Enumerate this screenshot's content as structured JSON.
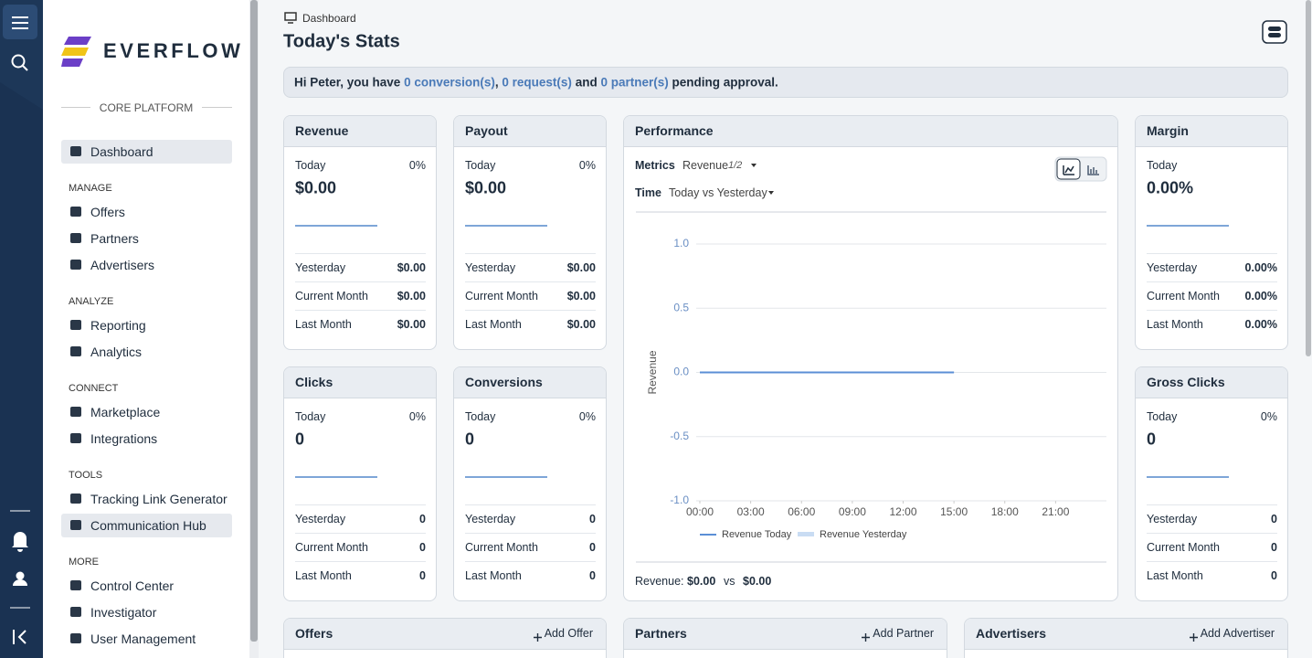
{
  "breadcrumb": "Dashboard",
  "title": "Today's Stats",
  "banner": {
    "greeting": "Hi Peter, you have",
    "conversions": "0 conversion(s)",
    "comma": ",",
    "requests": "0 request(s)",
    "and": "and",
    "partners": "0 partner(s)",
    "suffix": "pending approval."
  },
  "sidebar": {
    "brand": "EVERFLOW",
    "platform": "CORE PLATFORM",
    "top": [
      "Dashboard"
    ],
    "sections": [
      {
        "title": "MANAGE",
        "items": [
          "Offers",
          "Partners",
          "Advertisers"
        ]
      },
      {
        "title": "ANALYZE",
        "items": [
          "Reporting",
          "Analytics"
        ]
      },
      {
        "title": "CONNECT",
        "items": [
          "Marketplace",
          "Integrations"
        ]
      },
      {
        "title": "TOOLS",
        "items": [
          "Tracking Link Generator",
          "Communication Hub"
        ]
      },
      {
        "title": "MORE",
        "items": [
          "Control Center",
          "Investigator",
          "User Management"
        ]
      }
    ]
  },
  "stat_cards": [
    {
      "title": "Revenue",
      "today_label": "Today",
      "change": "0%",
      "today": "$0.00",
      "rows": [
        {
          "label": "Yesterday",
          "value": "$0.00"
        },
        {
          "label": "Current Month",
          "value": "$0.00"
        },
        {
          "label": "Last Month",
          "value": "$0.00"
        }
      ]
    },
    {
      "title": "Payout",
      "today_label": "Today",
      "change": "0%",
      "today": "$0.00",
      "rows": [
        {
          "label": "Yesterday",
          "value": "$0.00"
        },
        {
          "label": "Current Month",
          "value": "$0.00"
        },
        {
          "label": "Last Month",
          "value": "$0.00"
        }
      ]
    },
    {
      "title": "Margin",
      "today_label": "Today",
      "today": "0.00%",
      "rows": [
        {
          "label": "Yesterday",
          "value": "0.00%"
        },
        {
          "label": "Current Month",
          "value": "0.00%"
        },
        {
          "label": "Last Month",
          "value": "0.00%"
        }
      ]
    },
    {
      "title": "Clicks",
      "today_label": "Today",
      "change": "0%",
      "today": "0",
      "rows": [
        {
          "label": "Yesterday",
          "value": "0"
        },
        {
          "label": "Current Month",
          "value": "0"
        },
        {
          "label": "Last Month",
          "value": "0"
        }
      ]
    },
    {
      "title": "Conversions",
      "today_label": "Today",
      "change": "0%",
      "today": "0",
      "rows": [
        {
          "label": "Yesterday",
          "value": "0"
        },
        {
          "label": "Current Month",
          "value": "0"
        },
        {
          "label": "Last Month",
          "value": "0"
        }
      ]
    },
    {
      "title": "Gross Clicks",
      "today_label": "Today",
      "change": "0%",
      "today": "0",
      "rows": [
        {
          "label": "Yesterday",
          "value": "0"
        },
        {
          "label": "Current Month",
          "value": "0"
        },
        {
          "label": "Last Month",
          "value": "0"
        }
      ]
    }
  ],
  "performance": {
    "title": "Performance",
    "metrics_label": "Metrics",
    "metric": "Revenue",
    "metric_page": "1/2",
    "time_label": "Time",
    "time": "Today vs Yesterday",
    "chart": {
      "type": "line",
      "ylabel": "Revenue",
      "x": [
        0,
        1,
        2,
        3,
        4,
        5,
        6,
        7,
        8,
        9,
        10,
        11,
        12,
        13,
        14,
        15
      ],
      "xlim": [
        0,
        24
      ],
      "xticks": [
        {
          "value": 0,
          "label": "00:00"
        },
        {
          "value": 3,
          "label": "03:00"
        },
        {
          "value": 6,
          "label": "06:00"
        },
        {
          "value": 9,
          "label": "09:00"
        },
        {
          "value": 12,
          "label": "12:00"
        },
        {
          "value": 15,
          "label": "15:00"
        },
        {
          "value": 18,
          "label": "18:00"
        },
        {
          "value": 21,
          "label": "21:00"
        }
      ],
      "ylim": [
        -1,
        1
      ],
      "yticks": [
        {
          "value": -1,
          "label": "-1.0"
        },
        -0.5,
        {
          "value": 0,
          "label": "0.0"
        },
        0.5,
        {
          "value": 1,
          "label": "1.0"
        }
      ],
      "grid": true,
      "series": [
        {
          "name": "Revenue Today",
          "color": "#5b8fd6",
          "values": [
            0,
            0,
            0,
            0,
            0,
            0,
            0,
            0,
            0,
            0,
            0,
            0,
            0,
            0,
            0,
            0
          ]
        },
        {
          "name": "Revenue Yesterday",
          "color": "#c9dcf3",
          "values": [
            null,
            null,
            null,
            null,
            null,
            null,
            null,
            null,
            null,
            null,
            null,
            null,
            null,
            null,
            null,
            null
          ]
        }
      ]
    },
    "summary_label": "Revenue:",
    "today_total": "$0.00",
    "vs": "vs",
    "yesterday_total": "$0.00"
  },
  "tables": [
    {
      "title": "Offers",
      "action": "Add Offer"
    },
    {
      "title": "Partners",
      "action": "Add Partner"
    },
    {
      "title": "Advertisers",
      "action": "Add Advertiser"
    }
  ]
}
